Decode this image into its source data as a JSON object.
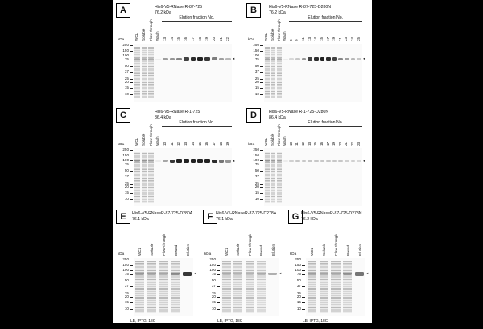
{
  "figure": {
    "panels": [
      {
        "id": "A",
        "label": "A",
        "title_line1": "His6-V5-RNase R-87-725",
        "title_line2": "76.2 kDa",
        "fraction_header": "Elution fraction No.",
        "lanes": [
          "WCL",
          "Soluble",
          "Flow-through",
          "Wash",
          "13",
          "14",
          "15",
          "16",
          "17",
          "18",
          "19",
          "20",
          "21",
          "22"
        ],
        "band_intensity": [
          0.35,
          0.3,
          0.3,
          0.05,
          0.55,
          0.6,
          0.7,
          0.85,
          0.95,
          1.0,
          0.9,
          0.75,
          0.55,
          0.4
        ],
        "footer": ""
      },
      {
        "id": "B",
        "label": "B",
        "title_line1": "His6-V5-RNase R-87-725-D280N",
        "title_line2": "76.2 kDa",
        "fraction_header": "Elution fraction No.",
        "lanes": [
          "WCL",
          "Soluble",
          "Flow-through",
          "Wash",
          "8",
          "9",
          "11",
          "13",
          "14",
          "15",
          "17",
          "19",
          "21",
          "23",
          "24",
          "25"
        ],
        "band_intensity": [
          0.35,
          0.3,
          0.3,
          0.05,
          0.2,
          0.3,
          0.6,
          0.85,
          0.95,
          1.0,
          0.95,
          0.85,
          0.7,
          0.55,
          0.4,
          0.3
        ],
        "footer": ""
      },
      {
        "id": "C",
        "label": "C",
        "title_line1": "His6-V5-RNase R-1-725",
        "title_line2": "86.4 kDa",
        "fraction_header": "Elution fraction No.",
        "lanes": [
          "WCL",
          "Soluble",
          "Flow-through",
          "Wash",
          "10",
          "11",
          "12",
          "13",
          "14",
          "15",
          "16",
          "17",
          "18",
          "19"
        ],
        "band_intensity": [
          0.4,
          0.35,
          0.3,
          0.05,
          0.5,
          0.9,
          1.0,
          1.0,
          1.0,
          1.0,
          1.0,
          0.95,
          0.8,
          0.6
        ],
        "footer": ""
      },
      {
        "id": "D",
        "label": "D",
        "title_line1": "His6-V5-RNase R-1-725-D280N",
        "title_line2": "86.4 kDa",
        "fraction_header": "Elution fraction No.",
        "lanes": [
          "WCL",
          "Soluble",
          "Flow-through",
          "Wash",
          "10",
          "11",
          "12",
          "13",
          "15",
          "16",
          "17",
          "19",
          "20",
          "21",
          "22",
          "23"
        ],
        "band_intensity": [
          0.35,
          0.3,
          0.3,
          0.05,
          0.25,
          0.3,
          0.3,
          0.3,
          0.3,
          0.3,
          0.3,
          0.3,
          0.3,
          0.25,
          0.25,
          0.2
        ],
        "footer": ""
      },
      {
        "id": "E",
        "label": "E",
        "title_line1": "His6-V5-RNaseR-87-725-D280A",
        "title_line2": "76.1 kDa",
        "fraction_header": "",
        "lanes": [
          "WCL",
          "Soluble",
          "Flow-through",
          "Bound",
          "Elution"
        ],
        "band_intensity": [
          0.45,
          0.4,
          0.35,
          0.6,
          0.9
        ],
        "footer": "LB, IPTG, 18C"
      },
      {
        "id": "F",
        "label": "F",
        "title_line1": "His6-V5-RNaseR-87-725-D278A",
        "title_line2": "76.1 kDa",
        "fraction_header": "",
        "lanes": [
          "WCL",
          "Soluble",
          "Flow-through",
          "Bound",
          "Elution"
        ],
        "band_intensity": [
          0.3,
          0.25,
          0.25,
          0.35,
          0.45
        ],
        "footer": "LB, IPTG, 18C"
      },
      {
        "id": "G",
        "label": "G",
        "title_line1": "His6-V5-RNaseR-87-725-D278N",
        "title_line2": "76.2 kDa",
        "fraction_header": "",
        "lanes": [
          "WCL",
          "Soluble",
          "Flow-through",
          "Bound",
          "Elution"
        ],
        "band_intensity": [
          0.4,
          0.35,
          0.35,
          0.55,
          0.8
        ],
        "footer": "LB, IPTG, 18C"
      }
    ],
    "kda_label": "kDa",
    "mw_markers": [
      "250",
      "150",
      "100",
      "75",
      "50",
      "37",
      "25",
      "20",
      "15",
      "10"
    ],
    "arrow_glyph": "◂",
    "colors": {
      "background": "#000000",
      "figure": "#ffffff",
      "band": "#333333"
    }
  }
}
